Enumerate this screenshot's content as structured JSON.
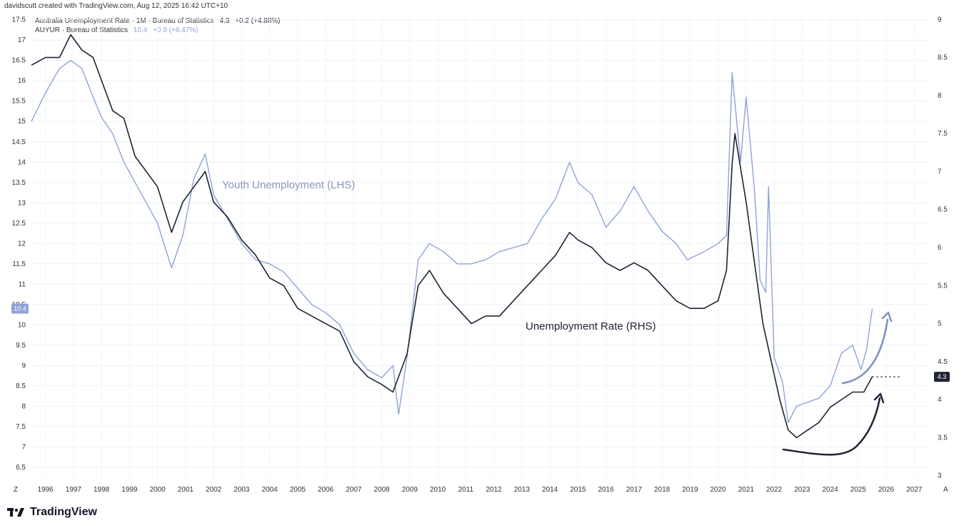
{
  "header": {
    "credit": "davidscutt created with TradingView.com, Aug 12, 2025 16:42 UTC+10"
  },
  "legend": [
    {
      "label": "Australia Unemployment Rate · 1M · Bureau of Statistics",
      "value": "4.3",
      "change": "+0.2 (+4.88%)",
      "color": "#1e2433"
    },
    {
      "label": "AUYUR · Bureau of Statistics",
      "value": "10.4",
      "change": "+0.9 (+9.47%)",
      "color": "#8fa3d6"
    }
  ],
  "brand": "TradingView",
  "chart_data": {
    "type": "line",
    "x_ticks": [
      "1996",
      "1997",
      "1998",
      "1999",
      "2000",
      "2001",
      "2002",
      "2003",
      "2004",
      "2005",
      "2006",
      "2007",
      "2008",
      "2009",
      "2010",
      "2011",
      "2012",
      "2013",
      "2014",
      "2015",
      "2016",
      "2017",
      "2018",
      "2019",
      "2020",
      "2021",
      "2022",
      "2023",
      "2024",
      "2025",
      "2026",
      "2027"
    ],
    "x_range": [
      1995.5,
      2027.5
    ],
    "left_axis": {
      "ticks": [
        6.5,
        7,
        7.5,
        8,
        8.5,
        9,
        9.5,
        10,
        10.5,
        11,
        11.5,
        12,
        12.5,
        13,
        13.5,
        14,
        14.5,
        15,
        15.5,
        16,
        16.5,
        17,
        17.5
      ],
      "range": [
        6.2,
        17.6
      ]
    },
    "right_axis": {
      "ticks": [
        3,
        3.5,
        4,
        4.5,
        5,
        5.5,
        6,
        6.5,
        7,
        7.5,
        8,
        8.5,
        9
      ],
      "range": [
        2.95,
        9.05
      ]
    },
    "left_last_label": "10.4",
    "right_last_label": "4.3",
    "corner_left": "Z",
    "corner_right": "A",
    "annotations": [
      {
        "text": "Youth Unemployment (LHS)",
        "color": "#8a96b4"
      },
      {
        "text": "Unemployment Rate (RHS)",
        "color": "#1e2433"
      }
    ],
    "series": [
      {
        "name": "Australia Unemployment Rate · 1M · Bureau of Statistics",
        "axis": "right",
        "color": "#1e2433",
        "points": [
          [
            1995.5,
            8.4
          ],
          [
            1996.0,
            8.5
          ],
          [
            1996.5,
            8.5
          ],
          [
            1996.9,
            8.8
          ],
          [
            1997.3,
            8.6
          ],
          [
            1997.7,
            8.5
          ],
          [
            1998.0,
            8.2
          ],
          [
            1998.4,
            7.8
          ],
          [
            1998.8,
            7.7
          ],
          [
            1999.2,
            7.2
          ],
          [
            1999.6,
            7.0
          ],
          [
            2000.0,
            6.8
          ],
          [
            2000.5,
            6.2
          ],
          [
            2000.9,
            6.6
          ],
          [
            2001.3,
            6.8
          ],
          [
            2001.7,
            7.0
          ],
          [
            2002.0,
            6.6
          ],
          [
            2002.5,
            6.4
          ],
          [
            2003.0,
            6.1
          ],
          [
            2003.5,
            5.9
          ],
          [
            2004.0,
            5.6
          ],
          [
            2004.5,
            5.5
          ],
          [
            2005.0,
            5.2
          ],
          [
            2005.5,
            5.1
          ],
          [
            2006.0,
            5.0
          ],
          [
            2006.5,
            4.9
          ],
          [
            2007.0,
            4.5
          ],
          [
            2007.5,
            4.3
          ],
          [
            2008.0,
            4.2
          ],
          [
            2008.4,
            4.1
          ],
          [
            2008.9,
            4.6
          ],
          [
            2009.3,
            5.5
          ],
          [
            2009.7,
            5.7
          ],
          [
            2010.2,
            5.4
          ],
          [
            2010.7,
            5.2
          ],
          [
            2011.2,
            5.0
          ],
          [
            2011.7,
            5.1
          ],
          [
            2012.2,
            5.1
          ],
          [
            2012.7,
            5.3
          ],
          [
            2013.2,
            5.5
          ],
          [
            2013.7,
            5.7
          ],
          [
            2014.2,
            5.9
          ],
          [
            2014.7,
            6.2
          ],
          [
            2015.0,
            6.1
          ],
          [
            2015.5,
            6.0
          ],
          [
            2016.0,
            5.8
          ],
          [
            2016.5,
            5.7
          ],
          [
            2017.0,
            5.8
          ],
          [
            2017.5,
            5.7
          ],
          [
            2018.0,
            5.5
          ],
          [
            2018.5,
            5.3
          ],
          [
            2019.0,
            5.2
          ],
          [
            2019.5,
            5.2
          ],
          [
            2020.0,
            5.3
          ],
          [
            2020.3,
            5.7
          ],
          [
            2020.5,
            7.1
          ],
          [
            2020.6,
            7.5
          ],
          [
            2021.0,
            6.6
          ],
          [
            2021.3,
            5.8
          ],
          [
            2021.6,
            5.0
          ],
          [
            2021.9,
            4.5
          ],
          [
            2022.2,
            4.0
          ],
          [
            2022.5,
            3.6
          ],
          [
            2022.8,
            3.5
          ],
          [
            2023.2,
            3.6
          ],
          [
            2023.6,
            3.7
          ],
          [
            2024.0,
            3.9
          ],
          [
            2024.4,
            4.0
          ],
          [
            2024.8,
            4.1
          ],
          [
            2025.2,
            4.1
          ],
          [
            2025.5,
            4.3
          ]
        ]
      },
      {
        "name": "AUYUR · Bureau of Statistics",
        "axis": "left",
        "color": "#8fa3d6",
        "points": [
          [
            1995.5,
            15.0
          ],
          [
            1996.0,
            15.7
          ],
          [
            1996.5,
            16.3
          ],
          [
            1996.9,
            16.5
          ],
          [
            1997.3,
            16.3
          ],
          [
            1997.7,
            15.6
          ],
          [
            1998.0,
            15.1
          ],
          [
            1998.4,
            14.7
          ],
          [
            1998.8,
            14.0
          ],
          [
            1999.2,
            13.5
          ],
          [
            1999.6,
            13.0
          ],
          [
            2000.0,
            12.5
          ],
          [
            2000.5,
            11.4
          ],
          [
            2000.9,
            12.2
          ],
          [
            2001.3,
            13.6
          ],
          [
            2001.7,
            14.2
          ],
          [
            2002.0,
            13.2
          ],
          [
            2002.5,
            12.6
          ],
          [
            2003.0,
            12.0
          ],
          [
            2003.5,
            11.6
          ],
          [
            2004.0,
            11.5
          ],
          [
            2004.5,
            11.3
          ],
          [
            2005.0,
            10.9
          ],
          [
            2005.5,
            10.5
          ],
          [
            2006.0,
            10.3
          ],
          [
            2006.5,
            10.0
          ],
          [
            2007.0,
            9.3
          ],
          [
            2007.5,
            8.9
          ],
          [
            2008.0,
            8.7
          ],
          [
            2008.4,
            9.0
          ],
          [
            2008.6,
            7.8
          ],
          [
            2008.9,
            9.2
          ],
          [
            2009.3,
            11.6
          ],
          [
            2009.7,
            12.0
          ],
          [
            2010.2,
            11.8
          ],
          [
            2010.7,
            11.5
          ],
          [
            2011.2,
            11.5
          ],
          [
            2011.7,
            11.6
          ],
          [
            2012.2,
            11.8
          ],
          [
            2012.7,
            11.9
          ],
          [
            2013.2,
            12.0
          ],
          [
            2013.7,
            12.6
          ],
          [
            2014.2,
            13.1
          ],
          [
            2014.7,
            14.0
          ],
          [
            2015.0,
            13.5
          ],
          [
            2015.5,
            13.2
          ],
          [
            2016.0,
            12.4
          ],
          [
            2016.5,
            12.8
          ],
          [
            2017.0,
            13.4
          ],
          [
            2017.5,
            12.8
          ],
          [
            2018.0,
            12.3
          ],
          [
            2018.5,
            12.0
          ],
          [
            2018.9,
            11.6
          ],
          [
            2019.5,
            11.8
          ],
          [
            2020.0,
            12.0
          ],
          [
            2020.3,
            12.2
          ],
          [
            2020.5,
            16.2
          ],
          [
            2020.8,
            14.0
          ],
          [
            2021.0,
            15.6
          ],
          [
            2021.3,
            13.3
          ],
          [
            2021.5,
            11.1
          ],
          [
            2021.7,
            10.8
          ],
          [
            2021.8,
            13.4
          ],
          [
            2022.0,
            9.2
          ],
          [
            2022.3,
            8.6
          ],
          [
            2022.5,
            7.6
          ],
          [
            2022.8,
            8.0
          ],
          [
            2023.2,
            8.1
          ],
          [
            2023.6,
            8.2
          ],
          [
            2024.0,
            8.5
          ],
          [
            2024.4,
            9.3
          ],
          [
            2024.8,
            9.5
          ],
          [
            2025.1,
            8.9
          ],
          [
            2025.3,
            9.4
          ],
          [
            2025.5,
            10.4
          ]
        ]
      }
    ]
  }
}
